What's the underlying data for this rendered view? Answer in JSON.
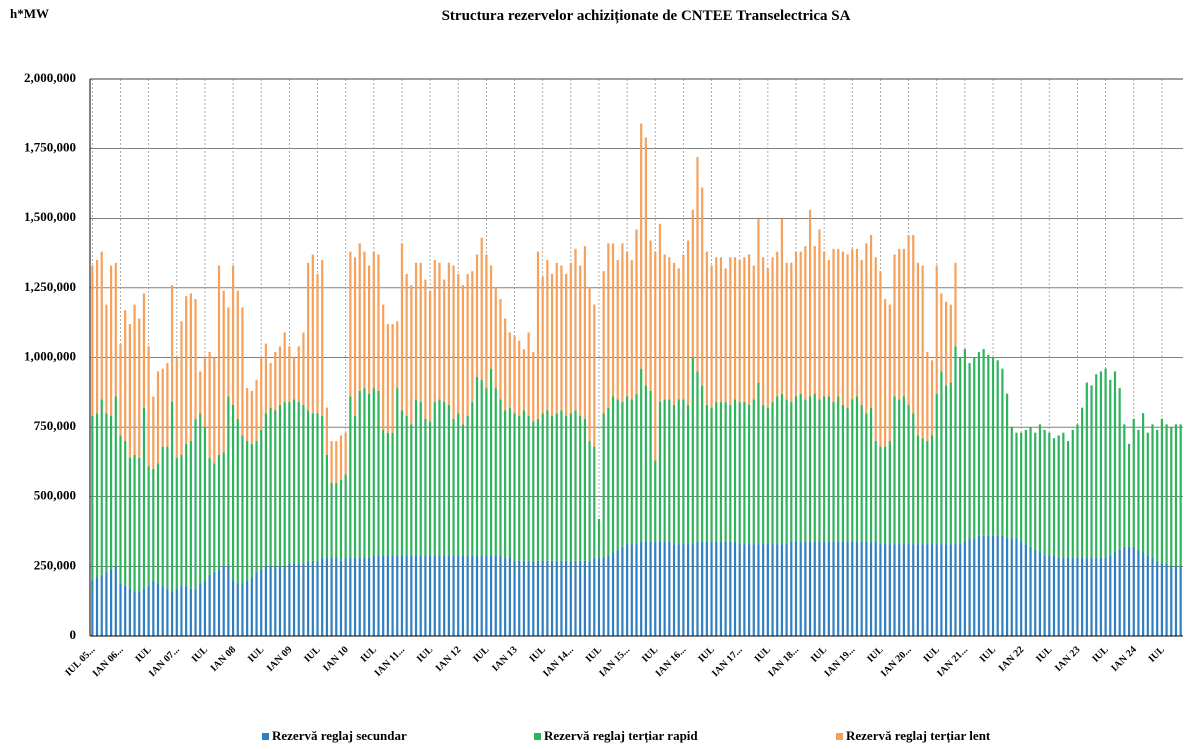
{
  "chart_data": {
    "type": "stacked_bar",
    "title": "Structura rezervelor achiziționate de CNTEE Transelectrica SA",
    "y_label": "h*MW",
    "ylim": [
      0,
      2000000
    ],
    "yticks": [
      0,
      {
        "value": 250000,
        "label": "250,000"
      },
      {
        "value": 500000,
        "label": "500,000"
      },
      {
        "value": 750000,
        "label": "750,000"
      },
      {
        "value": 1000000,
        "label": "1,000,000"
      },
      {
        "value": 1250000,
        "label": "1,250,000"
      },
      {
        "value": 1500000,
        "label": "1,500,000"
      },
      {
        "value": 1750000,
        "label": "1,750,000"
      },
      {
        "value": 2000000,
        "label": "2,000,000"
      }
    ],
    "grid": true,
    "legend": "bottom",
    "categories": [
      "IUL 05...",
      null,
      null,
      null,
      null,
      null,
      "IAN 06...",
      null,
      null,
      null,
      null,
      null,
      "IUL",
      null,
      null,
      null,
      null,
      null,
      "IAN 07...",
      null,
      null,
      null,
      null,
      null,
      "IUL",
      null,
      null,
      null,
      null,
      null,
      "IAN 08",
      null,
      null,
      null,
      null,
      null,
      "IUL",
      null,
      null,
      null,
      null,
      null,
      "IAN 09",
      null,
      null,
      null,
      null,
      null,
      "IUL",
      null,
      null,
      null,
      null,
      null,
      "IAN 10",
      null,
      null,
      null,
      null,
      null,
      "IUL",
      null,
      null,
      null,
      null,
      null,
      "IAN 11...",
      null,
      null,
      null,
      null,
      null,
      "IUL",
      null,
      null,
      null,
      null,
      null,
      "IAN 12",
      null,
      null,
      null,
      null,
      null,
      "IUL",
      null,
      null,
      null,
      null,
      null,
      "IAN 13",
      null,
      null,
      null,
      null,
      null,
      "IUL",
      null,
      null,
      null,
      null,
      null,
      "IAN 14...",
      null,
      null,
      null,
      null,
      null,
      "IUL",
      null,
      null,
      null,
      null,
      null,
      "IAN 15...",
      null,
      null,
      null,
      null,
      null,
      "IUL",
      null,
      null,
      null,
      null,
      null,
      "IAN 16...",
      null,
      null,
      null,
      null,
      null,
      "IUL",
      null,
      null,
      null,
      null,
      null,
      "IAN 17...",
      null,
      null,
      null,
      null,
      null,
      "IUL",
      null,
      null,
      null,
      null,
      null,
      "IAN 18...",
      null,
      null,
      null,
      null,
      null,
      "IUL",
      null,
      null,
      null,
      null,
      null,
      "IAN 19...",
      null,
      null,
      null,
      null,
      null,
      "IUL",
      null,
      null,
      null,
      null,
      null,
      "IAN 20...",
      null,
      null,
      null,
      null,
      null,
      "IUL",
      null,
      null,
      null,
      null,
      null,
      "IAN 21...",
      null,
      null,
      null,
      null,
      null,
      "IUL",
      null,
      null,
      null,
      null,
      null,
      "IAN 22",
      null,
      null,
      null,
      null,
      null,
      "IUL",
      null,
      null,
      null,
      null,
      null,
      "IAN 23",
      null,
      null,
      null,
      null,
      null,
      "IUL",
      null,
      null,
      null,
      null,
      null,
      "IAN 24",
      null,
      null,
      null,
      null,
      null,
      "IUL",
      null,
      null,
      null,
      null
    ],
    "series": [
      {
        "name": "Rezervă reglaj secundar",
        "color": "#2f7fc1",
        "values": [
          200000,
          210000,
          220000,
          230000,
          240000,
          250000,
          190000,
          180000,
          170000,
          160000,
          160000,
          170000,
          180000,
          200000,
          190000,
          180000,
          170000,
          160000,
          170000,
          180000,
          180000,
          170000,
          170000,
          190000,
          200000,
          220000,
          230000,
          240000,
          250000,
          250000,
          200000,
          190000,
          190000,
          200000,
          210000,
          230000,
          240000,
          250000,
          250000,
          250000,
          250000,
          250000,
          260000,
          260000,
          260000,
          260000,
          270000,
          270000,
          270000,
          280000,
          280000,
          280000,
          280000,
          270000,
          280000,
          280000,
          280000,
          280000,
          280000,
          280000,
          290000,
          290000,
          290000,
          290000,
          290000,
          290000,
          290000,
          290000,
          290000,
          290000,
          290000,
          290000,
          290000,
          290000,
          290000,
          290000,
          290000,
          290000,
          290000,
          290000,
          290000,
          290000,
          290000,
          290000,
          290000,
          290000,
          290000,
          290000,
          280000,
          280000,
          270000,
          270000,
          270000,
          270000,
          270000,
          270000,
          270000,
          270000,
          270000,
          270000,
          270000,
          270000,
          270000,
          270000,
          270000,
          270000,
          270000,
          280000,
          280000,
          280000,
          290000,
          300000,
          310000,
          320000,
          330000,
          330000,
          330000,
          340000,
          340000,
          340000,
          340000,
          340000,
          340000,
          340000,
          330000,
          330000,
          330000,
          330000,
          330000,
          340000,
          340000,
          340000,
          340000,
          340000,
          340000,
          340000,
          340000,
          340000,
          330000,
          330000,
          330000,
          330000,
          330000,
          330000,
          330000,
          330000,
          330000,
          330000,
          330000,
          340000,
          340000,
          340000,
          340000,
          340000,
          340000,
          340000,
          340000,
          340000,
          340000,
          340000,
          340000,
          340000,
          340000,
          340000,
          340000,
          340000,
          340000,
          340000,
          330000,
          330000,
          330000,
          330000,
          330000,
          330000,
          330000,
          330000,
          330000,
          330000,
          330000,
          330000,
          330000,
          330000,
          330000,
          330000,
          330000,
          330000,
          340000,
          350000,
          350000,
          360000,
          360000,
          360000,
          360000,
          360000,
          360000,
          350000,
          350000,
          350000,
          340000,
          330000,
          320000,
          310000,
          300000,
          290000,
          290000,
          290000,
          280000,
          280000,
          280000,
          280000,
          280000,
          280000,
          280000,
          280000,
          280000,
          280000,
          280000,
          290000,
          300000,
          310000,
          320000,
          320000,
          320000,
          310000,
          300000,
          290000,
          280000,
          270000,
          260000,
          260000,
          250000,
          250000,
          250000
        ]
      },
      {
        "name": "Rezervă reglaj terțiar rapid",
        "color": "#2fb35d",
        "values": [
          590000,
          590000,
          630000,
          570000,
          550000,
          610000,
          530000,
          520000,
          470000,
          490000,
          480000,
          650000,
          430000,
          400000,
          430000,
          500000,
          510000,
          680000,
          470000,
          470000,
          510000,
          530000,
          610000,
          610000,
          550000,
          420000,
          390000,
          410000,
          410000,
          610000,
          630000,
          590000,
          530000,
          500000,
          480000,
          470000,
          500000,
          550000,
          570000,
          560000,
          580000,
          590000,
          580000,
          590000,
          580000,
          570000,
          540000,
          530000,
          530000,
          510000,
          370000,
          270000,
          270000,
          290000,
          300000,
          580000,
          510000,
          600000,
          610000,
          590000,
          600000,
          590000,
          450000,
          440000,
          440000,
          600000,
          520000,
          500000,
          470000,
          560000,
          550000,
          490000,
          480000,
          550000,
          560000,
          550000,
          540000,
          490000,
          510000,
          470000,
          500000,
          550000,
          640000,
          630000,
          600000,
          670000,
          600000,
          560000,
          530000,
          540000,
          530000,
          520000,
          540000,
          520000,
          500000,
          510000,
          530000,
          540000,
          520000,
          530000,
          540000,
          520000,
          530000,
          540000,
          520000,
          510000,
          430000,
          400000,
          140000,
          520000,
          530000,
          560000,
          540000,
          520000,
          530000,
          520000,
          540000,
          620000,
          560000,
          540000,
          290000,
          500000,
          510000,
          510000,
          500000,
          520000,
          520000,
          500000,
          670000,
          610000,
          560000,
          490000,
          480000,
          500000,
          500000,
          500000,
          490000,
          510000,
          510000,
          510000,
          500000,
          520000,
          580000,
          500000,
          490000,
          510000,
          530000,
          540000,
          520000,
          500000,
          520000,
          530000,
          510000,
          520000,
          530000,
          510000,
          520000,
          520000,
          500000,
          520000,
          490000,
          480000,
          510000,
          520000,
          490000,
          460000,
          480000,
          360000,
          350000,
          350000,
          370000,
          530000,
          520000,
          530000,
          500000,
          470000,
          390000,
          380000,
          370000,
          390000,
          540000,
          620000,
          570000,
          580000,
          710000,
          670000,
          690000,
          630000,
          650000,
          660000,
          670000,
          650000,
          640000,
          630000,
          600000,
          520000,
          400000,
          380000,
          390000,
          410000,
          430000,
          420000,
          460000,
          450000,
          440000,
          420000,
          440000,
          450000,
          420000,
          460000,
          480000,
          540000,
          630000,
          620000,
          660000,
          670000,
          680000,
          630000,
          650000,
          580000,
          440000,
          370000,
          460000,
          430000,
          500000,
          440000,
          480000,
          470000,
          520000,
          500000,
          500000,
          510000,
          510000
        ]
      },
      {
        "name": "Rezervă reglaj terțiar lent",
        "color": "#f5a15b",
        "values": [
          540000,
          550000,
          530000,
          390000,
          540000,
          480000,
          330000,
          470000,
          480000,
          540000,
          500000,
          410000,
          430000,
          260000,
          330000,
          280000,
          300000,
          420000,
          360000,
          480000,
          530000,
          530000,
          430000,
          150000,
          250000,
          380000,
          380000,
          680000,
          580000,
          320000,
          500000,
          460000,
          460000,
          190000,
          190000,
          220000,
          260000,
          250000,
          160000,
          210000,
          210000,
          250000,
          200000,
          150000,
          200000,
          260000,
          530000,
          570000,
          500000,
          560000,
          170000,
          150000,
          150000,
          160000,
          150000,
          520000,
          570000,
          530000,
          490000,
          460000,
          490000,
          490000,
          450000,
          390000,
          390000,
          240000,
          600000,
          510000,
          500000,
          490000,
          500000,
          500000,
          470000,
          510000,
          490000,
          440000,
          510000,
          550000,
          500000,
          500000,
          510000,
          470000,
          440000,
          510000,
          480000,
          370000,
          360000,
          360000,
          330000,
          270000,
          280000,
          270000,
          220000,
          300000,
          250000,
          600000,
          490000,
          540000,
          510000,
          540000,
          520000,
          510000,
          540000,
          580000,
          540000,
          620000,
          550000,
          510000,
          0,
          510000,
          590000,
          550000,
          500000,
          570000,
          520000,
          500000,
          590000,
          880000,
          890000,
          540000,
          750000,
          640000,
          520000,
          510000,
          510000,
          470000,
          520000,
          590000,
          530000,
          770000,
          710000,
          550000,
          510000,
          520000,
          520000,
          480000,
          530000,
          510000,
          510000,
          520000,
          540000,
          480000,
          590000,
          530000,
          500000,
          520000,
          520000,
          630000,
          490000,
          500000,
          520000,
          510000,
          550000,
          670000,
          530000,
          610000,
          520000,
          490000,
          550000,
          530000,
          550000,
          550000,
          540000,
          530000,
          520000,
          610000,
          620000,
          660000,
          630000,
          530000,
          490000,
          510000,
          540000,
          530000,
          610000,
          640000,
          620000,
          620000,
          320000,
          270000,
          460000,
          280000,
          300000,
          280000,
          300000,
          0,
          0,
          0,
          0,
          0,
          0,
          0,
          0,
          0,
          0,
          0,
          0,
          0,
          0,
          0,
          0,
          0,
          0,
          0,
          0,
          0,
          0,
          0,
          0,
          0,
          0,
          0,
          0,
          0,
          0,
          0,
          0,
          0,
          0,
          0,
          0,
          0,
          0,
          0,
          0,
          0,
          0,
          0,
          0,
          0,
          0,
          0,
          0
        ]
      }
    ]
  }
}
